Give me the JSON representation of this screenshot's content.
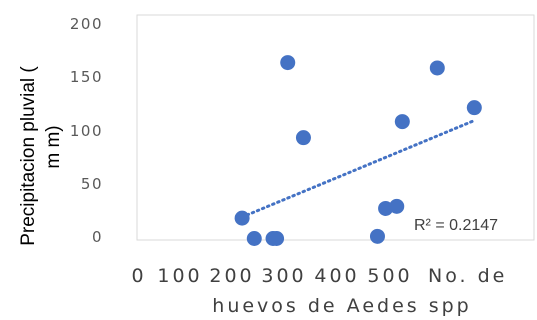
{
  "chart_data": {
    "type": "scatter",
    "title": "",
    "xlabel_line1": "No. de",
    "xlabel_line2": "huevos de Aedes spp",
    "ylabel_line1": "Precipitacion pluvial (",
    "ylabel_line2": "m m)",
    "xlim": [
      0,
      600
    ],
    "ylim": [
      0,
      200
    ],
    "x_ticks": [
      "0",
      "100",
      "200",
      "300",
      "400",
      "500"
    ],
    "y_ticks": [
      "0",
      "50",
      "100",
      "150",
      "200"
    ],
    "grid": false,
    "series": [
      {
        "color": "#4472C4",
        "points": [
          {
            "x": 158,
            "y": 19
          },
          {
            "x": 182,
            "y": 0
          },
          {
            "x": 219,
            "y": 0
          },
          {
            "x": 226,
            "y": 0
          },
          {
            "x": 248,
            "y": 164
          },
          {
            "x": 279,
            "y": 94
          },
          {
            "x": 425,
            "y": 2
          },
          {
            "x": 441,
            "y": 28
          },
          {
            "x": 463,
            "y": 30
          },
          {
            "x": 474,
            "y": 109
          },
          {
            "x": 543,
            "y": 159
          },
          {
            "x": 616,
            "y": 122
          }
        ]
      }
    ],
    "trendline": {
      "type": "linear",
      "style": "dotted",
      "color": "#4472C4",
      "x_range": [
        158,
        616
      ],
      "y_range": [
        20,
        110
      ],
      "r2_label": "R² = 0.2147"
    }
  }
}
